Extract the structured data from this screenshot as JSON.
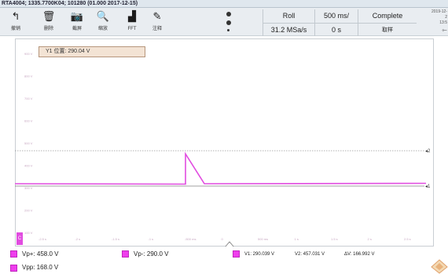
{
  "titlebar": {
    "text": "RTA4004; 1335.7700K04; 101280 (01.000 2017-12-15)"
  },
  "toolbar": {
    "tools": [
      {
        "label": "撤销",
        "icon": "undo-icon",
        "glyph": "↰"
      },
      {
        "label": "删除",
        "icon": "trash-icon",
        "glyph": "🗑"
      },
      {
        "label": "截屏",
        "icon": "camera-icon",
        "glyph": "📷"
      },
      {
        "label": "缩放",
        "icon": "zoom-icon",
        "glyph": "🔍"
      },
      {
        "label": "FFT",
        "icon": "fft-icon",
        "glyph": "▟"
      },
      {
        "label": "注释",
        "icon": "pencil-icon",
        "glyph": "✎"
      }
    ]
  },
  "status": {
    "mode": "Roll",
    "timebase": "500 ms/",
    "acq_state": "Complete",
    "sample_rate": "31.2 MSa/s",
    "offset": "0 s",
    "sampling_label": "取样",
    "date": "2019-12-2",
    "time": "13:5"
  },
  "cursor_box": {
    "text": "Y1 位置: 290.04 V"
  },
  "waveform": {
    "color": "#e14ce0",
    "y_ticks": [
      "900 V",
      "800 V",
      "700 V",
      "600 V",
      "500 V",
      "400 V",
      "300 V",
      "200 V",
      "100 V"
    ],
    "x_ticks": [
      "-2.5 s",
      "-2 s",
      "-1.5 s",
      "-1 s",
      "-500 ms",
      "0",
      "500 ms",
      "1 s",
      "1.5 s",
      "2 s",
      "2.5 s"
    ],
    "cursor_y1_label": "1",
    "cursor_y2_label": "2",
    "channel_marker": "C"
  },
  "measurements": {
    "vp_plus": "Vp+: 458.0 V",
    "vp_minus": "Vp-: 290.0 V",
    "vpp": "Vpp: 168.0 V",
    "v1": "V1: 290.039 V",
    "v2": "V2: 457.031 V",
    "dv": "ΔV: 166.992 V"
  }
}
